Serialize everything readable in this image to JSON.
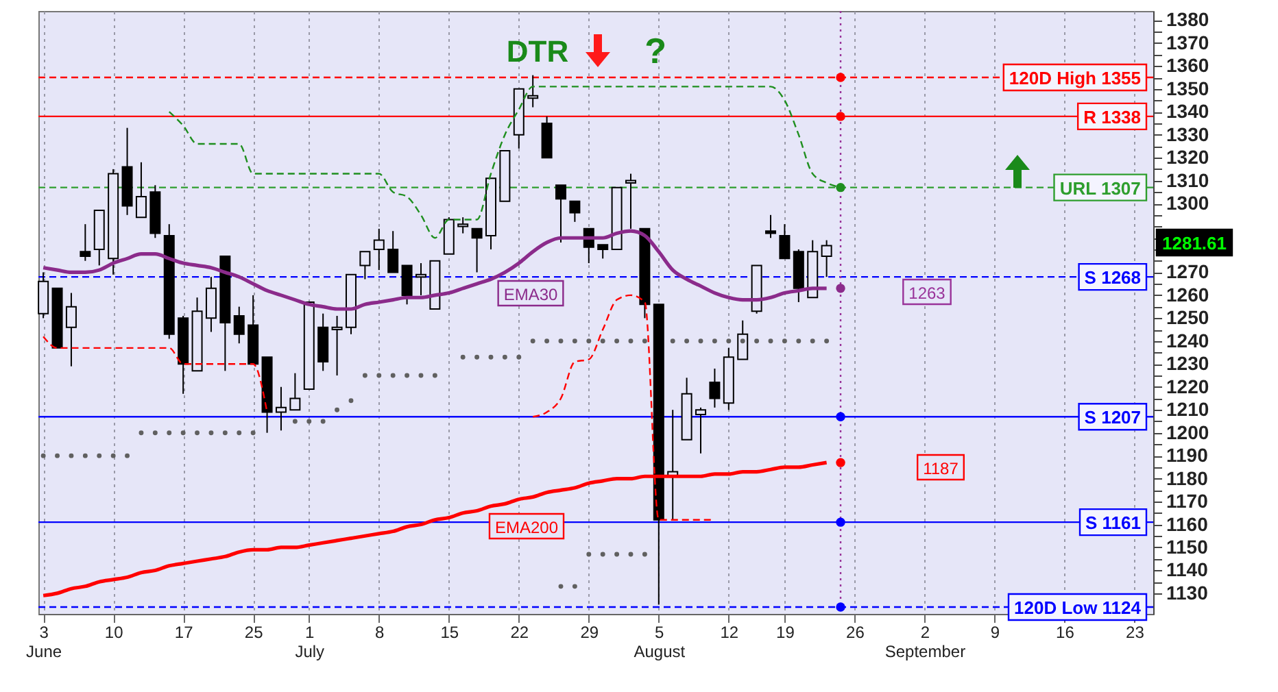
{
  "chart_data": {
    "type": "candlestick",
    "categories": [
      "3\nJune",
      null,
      null,
      null,
      null,
      "10",
      null,
      null,
      null,
      null,
      "17",
      null,
      null,
      null,
      null,
      "25",
      null,
      null,
      null,
      "1\nJuly",
      null,
      null,
      null,
      null,
      "8",
      null,
      null,
      null,
      null,
      "15",
      null,
      null,
      null,
      null,
      "22",
      null,
      null,
      null,
      null,
      "29",
      null,
      null,
      null,
      null,
      "5\nAugust",
      null,
      null,
      null,
      null,
      "12",
      null,
      null,
      null,
      "19",
      null,
      null,
      null,
      null,
      "26",
      null,
      null,
      null,
      null,
      "2\nSeptember",
      null,
      null,
      null,
      null,
      "9",
      null,
      null,
      null,
      null,
      "16",
      null,
      null,
      null,
      null,
      "23",
      null
    ],
    "ohlc": [
      [
        1252,
        1270,
        1250,
        1266
      ],
      [
        1263,
        1263,
        1237,
        1237
      ],
      [
        1246,
        1261,
        1229,
        1255
      ],
      [
        1279,
        1291,
        1275,
        1277
      ],
      [
        1280,
        1297,
        1273,
        1297
      ],
      [
        1276,
        1315,
        1269,
        1313
      ],
      [
        1316,
        1333,
        1295,
        1299
      ],
      [
        1294,
        1318,
        1294,
        1303
      ],
      [
        1305,
        1308,
        1285,
        1287
      ],
      [
        1286,
        1291,
        1241,
        1243
      ],
      [
        1250,
        1251,
        1217,
        1230
      ],
      [
        1227,
        1259,
        1227,
        1253
      ],
      [
        1250,
        1268,
        1244,
        1263
      ],
      [
        1277,
        1277,
        1227,
        1248
      ],
      [
        1251,
        1255,
        1239,
        1243
      ],
      [
        1247,
        1260,
        1230,
        1230
      ],
      [
        1233,
        1233,
        1200,
        1209
      ],
      [
        1209,
        1220,
        1201,
        1211
      ],
      [
        1210,
        1226,
        1210,
        1215
      ],
      [
        1219,
        1257,
        1219,
        1257
      ],
      [
        1246,
        1252,
        1227,
        1231
      ],
      [
        1245,
        1251,
        1225,
        1246
      ],
      [
        1246,
        1269,
        1243,
        1269
      ],
      [
        1273,
        1279,
        1267,
        1279
      ],
      [
        1280,
        1289,
        1271,
        1284
      ],
      [
        1280,
        1288,
        1270,
        1270
      ],
      [
        1273,
        1273,
        1256,
        1260
      ],
      [
        1268,
        1274,
        1260,
        1269
      ],
      [
        1254,
        1275,
        1254,
        1275
      ],
      [
        1278,
        1294,
        1278,
        1293
      ],
      [
        1290,
        1294,
        1287,
        1291
      ],
      [
        1289,
        1289,
        1270,
        1285
      ],
      [
        1286,
        1311,
        1280,
        1311
      ],
      [
        1301,
        1323,
        1301,
        1323
      ],
      [
        1330,
        1350,
        1324,
        1350
      ],
      [
        1346,
        1356,
        1342,
        1347
      ],
      [
        1335,
        1338,
        1320,
        1320
      ],
      [
        1308,
        1308,
        1283,
        1302
      ],
      [
        1301,
        1301,
        1292,
        1296
      ],
      [
        1289,
        1289,
        1274,
        1281
      ],
      [
        1282,
        1282,
        1276,
        1280
      ],
      [
        1280,
        1307,
        1280,
        1307
      ],
      [
        1309,
        1313,
        1289,
        1310
      ],
      [
        1289,
        1289,
        1250,
        1256
      ],
      [
        1256,
        1256,
        1125,
        1162
      ],
      [
        1181,
        1210,
        1162,
        1183
      ],
      [
        1197,
        1224,
        1197,
        1217
      ],
      [
        1208,
        1211,
        1191,
        1210
      ],
      [
        1222,
        1228,
        1211,
        1215
      ],
      [
        1213,
        1237,
        1210,
        1233
      ],
      [
        1232,
        1249,
        1232,
        1243
      ],
      [
        1253,
        1273,
        1252,
        1273
      ],
      [
        1288,
        1295,
        1285,
        1287
      ],
      [
        1286,
        1291,
        1276,
        1276
      ],
      [
        1279,
        1280,
        1257,
        1263
      ],
      [
        1259,
        1284,
        1259,
        1279
      ],
      [
        1277,
        1284,
        1268,
        1281.61
      ],
      null,
      null,
      null,
      null,
      null,
      null,
      null,
      null,
      null,
      null,
      null,
      null,
      null,
      null,
      null,
      null,
      null,
      null,
      null,
      null,
      null,
      null,
      null
    ],
    "series": [
      {
        "name": "EMA30",
        "type": "line",
        "color": "#8b2b8b",
        "line_style": "solid",
        "values": [
          1272,
          1271,
          1270,
          1270,
          1271,
          1274,
          1276,
          1278,
          1278,
          1276,
          1274,
          1273,
          1272,
          1270,
          1268,
          1265,
          1262,
          1260,
          1258,
          1256,
          1255,
          1254,
          1254,
          1256,
          1257,
          1258,
          1259,
          1259,
          1260,
          1261,
          1263,
          1265,
          1267,
          1270,
          1274,
          1279,
          1283,
          1285,
          1285,
          1285,
          1285,
          1287,
          1288,
          1286,
          1279,
          1271,
          1267,
          1264,
          1261,
          1259,
          1258,
          1258,
          1259,
          1261,
          1262,
          1263,
          1263,
          null,
          null,
          null,
          null,
          null,
          null,
          null,
          null,
          null,
          null,
          null,
          null,
          null,
          null,
          null,
          null,
          null,
          null,
          null,
          null,
          null,
          null,
          null
        ]
      },
      {
        "name": "EMA200",
        "type": "line",
        "color": "#ff0000",
        "line_style": "solid",
        "values": [
          1129,
          1130,
          1132,
          1133,
          1135,
          1136,
          1137,
          1139,
          1140,
          1142,
          1143,
          1144,
          1145,
          1146,
          1148,
          1149,
          1149,
          1150,
          1150,
          1151,
          1152,
          1153,
          1154,
          1155,
          1156,
          1157,
          1159,
          1160,
          1162,
          1163,
          1165,
          1166,
          1168,
          1169,
          1171,
          1172,
          1174,
          1175,
          1176,
          1178,
          1179,
          1180,
          1180,
          1181,
          1181,
          1181,
          1181,
          1181,
          1182,
          1182,
          1183,
          1183,
          1184,
          1185,
          1185,
          1186,
          1187,
          null,
          null,
          null,
          null,
          null,
          null,
          null,
          null,
          null,
          null,
          null,
          null,
          null,
          null,
          null,
          null,
          null,
          null,
          null,
          null,
          null,
          null,
          null
        ]
      },
      {
        "type": "line",
        "color": "#1f8f1f",
        "line_style": "dashed",
        "values": [
          null,
          null,
          null,
          null,
          null,
          null,
          null,
          null,
          null,
          1340,
          1334,
          1326,
          1326,
          1326,
          1326,
          1313,
          1313,
          1313,
          1313,
          1313,
          1313,
          1313,
          1313,
          1313,
          1313,
          1305,
          1303,
          1295,
          1285,
          1293,
          1293,
          1293,
          1313,
          1330,
          1341,
          1351,
          1351,
          1351,
          1351,
          1351,
          1351,
          1351,
          1351,
          1351,
          1351,
          1351,
          1351,
          1351,
          1351,
          1351,
          1351,
          1351,
          1351,
          1345,
          1330,
          1313,
          1309,
          1307,
          null,
          null,
          null,
          null,
          null,
          null,
          null,
          null,
          null,
          null,
          null,
          null,
          null,
          null,
          null,
          null,
          null,
          null,
          null,
          null,
          null,
          null
        ]
      },
      {
        "type": "line",
        "color": "#ff0000",
        "line_style": "dashed",
        "values": [
          1242,
          1237,
          1237,
          1237,
          1237,
          1237,
          1237,
          1237,
          1237,
          1237,
          1230,
          1230,
          1230,
          1230,
          1230,
          1230,
          1209,
          null,
          null,
          null,
          null,
          null,
          null,
          null,
          null,
          null,
          null,
          null,
          null,
          null,
          null,
          null,
          null,
          null,
          null,
          1207,
          1209,
          1215,
          1231,
          1232,
          1245,
          1258,
          1260,
          1257,
          1162,
          1162,
          1162,
          1162,
          1162,
          null,
          null,
          null,
          null,
          null,
          null,
          null,
          null,
          null,
          null,
          null,
          null,
          null,
          null,
          null,
          null,
          null,
          null,
          null,
          null,
          null,
          null,
          null,
          null,
          null,
          null,
          null,
          null,
          null,
          null,
          null
        ]
      },
      {
        "type": "scatter",
        "marker": "circle",
        "color": "#606060",
        "values": [
          1190,
          1190,
          1190,
          1190,
          1190,
          1190,
          1190,
          1200,
          1200,
          1200,
          1200,
          1200,
          1200,
          1200,
          1200,
          1200,
          null,
          null,
          1205,
          1205,
          1205,
          1210,
          1214,
          1225,
          1225,
          1225,
          1225,
          1225,
          1225,
          null,
          1233,
          1233,
          1233,
          1233,
          1233,
          1240,
          1240,
          1240,
          1240,
          1240,
          1240,
          1240,
          1240,
          1240,
          null,
          1240,
          1240,
          1240,
          1240,
          1240,
          1240,
          1240,
          1240,
          1240,
          1240,
          1240,
          1240,
          null,
          null,
          null,
          null,
          null,
          null,
          null,
          null,
          null,
          null,
          null,
          null,
          null,
          null,
          null,
          null,
          null,
          null,
          null,
          null,
          null,
          null,
          null
        ]
      },
      {
        "type": "scatter",
        "marker": "circle",
        "color": "#606060",
        "values": [
          null,
          null,
          null,
          null,
          null,
          null,
          null,
          null,
          null,
          null,
          null,
          null,
          null,
          null,
          null,
          null,
          null,
          null,
          null,
          null,
          null,
          null,
          null,
          null,
          null,
          null,
          null,
          null,
          null,
          null,
          null,
          null,
          null,
          null,
          null,
          null,
          null,
          1133,
          1133,
          1147,
          1147,
          1147,
          1147,
          1147,
          null,
          null,
          null,
          null,
          null,
          null,
          null,
          null,
          null,
          null,
          null,
          null,
          null,
          null,
          null,
          null,
          null,
          null,
          null,
          null,
          null,
          null,
          null,
          null,
          null,
          null,
          null,
          null,
          null,
          null,
          null,
          null,
          null,
          null,
          null,
          null
        ]
      },
      {
        "type": "scatter",
        "marker": "circle",
        "color": "#ff0000",
        "values": [
          null,
          null,
          null,
          null,
          null,
          null,
          null,
          null,
          null,
          null,
          null,
          null,
          null,
          null,
          null,
          null,
          null,
          null,
          null,
          null,
          null,
          null,
          null,
          null,
          null,
          null,
          null,
          null,
          null,
          null,
          null,
          null,
          null,
          null,
          null,
          null,
          null,
          null,
          null,
          null,
          null,
          null,
          null,
          null,
          null,
          null,
          null,
          null,
          null,
          null,
          null,
          null,
          null,
          null,
          null,
          null,
          null,
          1355,
          null,
          null,
          null,
          null,
          null,
          null,
          null,
          null,
          null,
          null,
          null,
          null,
          null,
          null,
          null,
          null,
          null,
          null,
          null,
          null,
          null,
          null
        ]
      },
      {
        "type": "scatter",
        "marker": "circle",
        "color": "#ff0000",
        "values": [
          null,
          null,
          null,
          null,
          null,
          null,
          null,
          null,
          null,
          null,
          null,
          null,
          null,
          null,
          null,
          null,
          null,
          null,
          null,
          null,
          null,
          null,
          null,
          null,
          null,
          null,
          null,
          null,
          null,
          null,
          null,
          null,
          null,
          null,
          null,
          null,
          null,
          null,
          null,
          null,
          null,
          null,
          null,
          null,
          null,
          null,
          null,
          null,
          null,
          null,
          null,
          null,
          null,
          null,
          null,
          null,
          null,
          1338,
          null,
          null,
          null,
          null,
          null,
          null,
          null,
          null,
          null,
          null,
          null,
          null,
          null,
          null,
          null,
          null,
          null,
          null,
          null,
          null,
          null,
          null
        ]
      },
      {
        "type": "scatter",
        "marker": "circle",
        "color": "#1f8f1f",
        "values": [
          null,
          null,
          null,
          null,
          null,
          null,
          null,
          null,
          null,
          null,
          null,
          null,
          null,
          null,
          null,
          null,
          null,
          null,
          null,
          null,
          null,
          null,
          null,
          null,
          null,
          null,
          null,
          null,
          null,
          null,
          null,
          null,
          null,
          null,
          null,
          null,
          null,
          null,
          null,
          null,
          null,
          null,
          null,
          null,
          null,
          null,
          null,
          null,
          null,
          null,
          null,
          null,
          null,
          null,
          null,
          null,
          null,
          1307,
          null,
          null,
          null,
          null,
          null,
          null,
          null,
          null,
          null,
          null,
          null,
          null,
          null,
          null,
          null,
          null,
          null,
          null,
          null,
          null,
          null,
          null
        ]
      },
      {
        "type": "scatter",
        "marker": "circle",
        "color": "#8b2b8b",
        "values": [
          null,
          null,
          null,
          null,
          null,
          null,
          null,
          null,
          null,
          null,
          null,
          null,
          null,
          null,
          null,
          null,
          null,
          null,
          null,
          null,
          null,
          null,
          null,
          null,
          null,
          null,
          null,
          null,
          null,
          null,
          null,
          null,
          null,
          null,
          null,
          null,
          null,
          null,
          null,
          null,
          null,
          null,
          null,
          null,
          null,
          null,
          null,
          null,
          null,
          null,
          null,
          null,
          null,
          null,
          null,
          null,
          null,
          1263,
          null,
          null,
          null,
          null,
          null,
          null,
          null,
          null,
          null,
          null,
          null,
          null,
          null,
          null,
          null,
          null,
          null,
          null,
          null,
          null,
          null,
          null
        ]
      },
      {
        "type": "scatter",
        "marker": "circle",
        "color": "#0000ff",
        "values": [
          null,
          null,
          null,
          null,
          null,
          null,
          null,
          null,
          null,
          null,
          null,
          null,
          null,
          null,
          null,
          null,
          null,
          null,
          null,
          null,
          null,
          null,
          null,
          null,
          null,
          null,
          null,
          null,
          null,
          null,
          null,
          null,
          null,
          null,
          null,
          null,
          null,
          null,
          null,
          null,
          null,
          null,
          null,
          null,
          null,
          null,
          null,
          null,
          null,
          null,
          null,
          null,
          null,
          null,
          null,
          null,
          null,
          1207,
          null,
          null,
          null,
          null,
          null,
          null,
          null,
          null,
          null,
          null,
          null,
          null,
          null,
          null,
          null,
          null,
          null,
          null,
          null,
          null,
          null,
          null
        ]
      },
      {
        "type": "scatter",
        "marker": "circle",
        "color": "#ff0000",
        "values": [
          null,
          null,
          null,
          null,
          null,
          null,
          null,
          null,
          null,
          null,
          null,
          null,
          null,
          null,
          null,
          null,
          null,
          null,
          null,
          null,
          null,
          null,
          null,
          null,
          null,
          null,
          null,
          null,
          null,
          null,
          null,
          null,
          null,
          null,
          null,
          null,
          null,
          null,
          null,
          null,
          null,
          null,
          null,
          null,
          null,
          null,
          null,
          null,
          null,
          null,
          null,
          null,
          null,
          null,
          null,
          null,
          null,
          1187,
          null,
          null,
          null,
          null,
          null,
          null,
          null,
          null,
          null,
          null,
          null,
          null,
          null,
          null,
          null,
          null,
          null,
          null,
          null,
          null,
          null,
          null
        ]
      },
      {
        "type": "scatter",
        "marker": "circle",
        "color": "#0000ff",
        "values": [
          null,
          null,
          null,
          null,
          null,
          null,
          null,
          null,
          null,
          null,
          null,
          null,
          null,
          null,
          null,
          null,
          null,
          null,
          null,
          null,
          null,
          null,
          null,
          null,
          null,
          null,
          null,
          null,
          null,
          null,
          null,
          null,
          null,
          null,
          null,
          null,
          null,
          null,
          null,
          null,
          null,
          null,
          null,
          null,
          null,
          null,
          null,
          null,
          null,
          null,
          null,
          null,
          null,
          null,
          null,
          null,
          null,
          1161,
          null,
          null,
          null,
          null,
          null,
          null,
          null,
          null,
          null,
          null,
          null,
          null,
          null,
          null,
          null,
          null,
          null,
          null,
          null,
          null,
          null,
          null
        ]
      },
      {
        "type": "scatter",
        "marker": "circle",
        "color": "#0000ff",
        "values": [
          null,
          null,
          null,
          null,
          null,
          null,
          null,
          null,
          null,
          null,
          null,
          null,
          null,
          null,
          null,
          null,
          null,
          null,
          null,
          null,
          null,
          null,
          null,
          null,
          null,
          null,
          null,
          null,
          null,
          null,
          null,
          null,
          null,
          null,
          null,
          null,
          null,
          null,
          null,
          null,
          null,
          null,
          null,
          null,
          null,
          null,
          null,
          null,
          null,
          null,
          null,
          null,
          null,
          null,
          null,
          null,
          null,
          1124,
          null,
          null,
          null,
          null,
          null,
          null,
          null,
          null,
          null,
          null,
          null,
          null,
          null,
          null,
          null,
          null,
          null,
          null,
          null,
          null,
          null,
          null
        ]
      }
    ],
    "ylim": [
      1121,
      1384
    ],
    "yticks": [
      1130,
      {
        "value": 1135,
        "label": null
      },
      1140,
      {
        "value": 1145,
        "label": null
      },
      1150,
      {
        "value": 1155,
        "label": null
      },
      1160,
      {
        "value": 1165,
        "label": null
      },
      1170,
      {
        "value": 1175,
        "label": null
      },
      1180,
      {
        "value": 1185,
        "label": null
      },
      1190,
      {
        "value": 1195,
        "label": null
      },
      1200,
      {
        "value": 1205,
        "label": null
      },
      1210,
      {
        "value": 1215,
        "label": null
      },
      1220,
      {
        "value": 1225,
        "label": null
      },
      1230,
      {
        "value": 1235,
        "label": null
      },
      1240,
      {
        "value": 1245,
        "label": null
      },
      1250,
      {
        "value": 1255,
        "label": null
      },
      1260,
      {
        "value": 1265,
        "label": null
      },
      1270,
      {
        "value": 1275,
        "label": null
      },
      {
        "value": 1280,
        "label": null
      },
      {
        "value": 1285,
        "label": null
      },
      {
        "value": 1290,
        "label": null
      },
      {
        "value": 1295,
        "label": null
      },
      1300,
      {
        "value": 1305,
        "label": null
      },
      1310,
      {
        "value": 1315,
        "label": null
      },
      1320,
      {
        "value": 1325,
        "label": null
      },
      1330,
      {
        "value": 1335,
        "label": null
      },
      1340,
      {
        "value": 1345,
        "label": null
      },
      1350,
      {
        "value": 1355,
        "label": null
      },
      1360,
      {
        "value": 1365,
        "label": null
      },
      1370,
      {
        "value": 1375,
        "label": null
      },
      1380
    ],
    "grid": "x",
    "ref_lines": [
      {
        "axis": "y",
        "value": 1355,
        "label": "120D High 1355",
        "color": "#ff0000",
        "line_style": "dashed"
      },
      {
        "axis": "y",
        "value": 1338,
        "label": "R 1338",
        "color": "#ff0000",
        "line_style": "solid"
      },
      {
        "axis": "y",
        "value": 1307,
        "label": "URL 1307",
        "color": "#2e9e2e",
        "line_style": "dashed"
      },
      {
        "axis": "y",
        "value": 1268,
        "label": "S 1268",
        "color": "#0000ff",
        "line_style": "dashed"
      },
      {
        "axis": "y",
        "value": 1207,
        "label": "S 1207",
        "color": "#0000ff",
        "line_style": "solid"
      },
      {
        "axis": "y",
        "value": 1161,
        "label": "S 1161",
        "color": "#0000ff",
        "line_style": "solid"
      },
      {
        "axis": "y",
        "value": 1124,
        "label": "120D Low 1124",
        "color": "#0000ff",
        "line_style": "dashed"
      }
    ],
    "annotations": [
      "DTR",
      "?",
      "1263",
      "1187",
      "1281.61"
    ]
  }
}
